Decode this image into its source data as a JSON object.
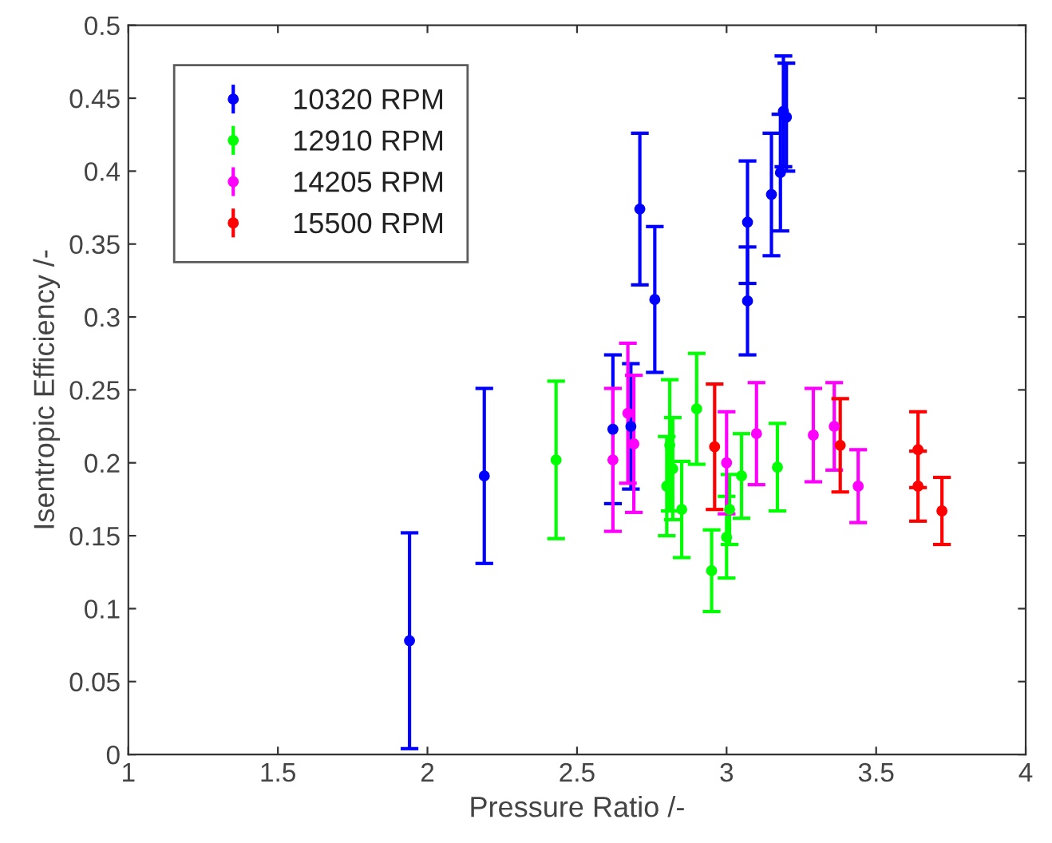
{
  "chart_data": {
    "type": "scatter",
    "xlabel": "Pressure Ratio /-",
    "ylabel": "Isentropic Efficiency /-",
    "xlim": [
      1,
      4
    ],
    "ylim": [
      0,
      0.5
    ],
    "xticks": [
      1,
      1.5,
      2,
      2.5,
      3,
      3.5,
      4
    ],
    "yticks": [
      0,
      0.05,
      0.1,
      0.15,
      0.2,
      0.25,
      0.3,
      0.35,
      0.4,
      0.45,
      0.5
    ],
    "legend": "top left",
    "grid": false,
    "marker": "circle",
    "series": [
      {
        "name": "10320 RPM",
        "color": "#0000ff",
        "x": [
          1.94,
          2.19,
          2.62,
          2.68,
          2.71,
          2.76,
          3.07,
          3.07,
          3.15,
          3.18,
          3.19,
          3.2
        ],
        "values": [
          0.078,
          0.191,
          0.223,
          0.225,
          0.374,
          0.312,
          0.365,
          0.311,
          0.384,
          0.399,
          0.441,
          0.437
        ],
        "errors": [
          0.074,
          0.06,
          0.051,
          0.043,
          0.052,
          0.05,
          0.042,
          0.037,
          0.042,
          0.04,
          0.038,
          0.037
        ]
      },
      {
        "name": "12910 RPM",
        "color": "#00ff00",
        "x": [
          2.43,
          2.8,
          2.81,
          2.82,
          2.85,
          2.9,
          2.95,
          3.0,
          3.01,
          3.05,
          3.17
        ],
        "values": [
          0.202,
          0.184,
          0.212,
          0.196,
          0.168,
          0.237,
          0.126,
          0.149,
          0.168,
          0.191,
          0.197
        ],
        "errors": [
          0.054,
          0.034,
          0.045,
          0.035,
          0.033,
          0.038,
          0.028,
          0.028,
          0.024,
          0.029,
          0.03
        ]
      },
      {
        "name": "14205 RPM",
        "color": "#ff00ff",
        "x": [
          2.62,
          2.67,
          2.69,
          3.0,
          3.1,
          3.29,
          3.36,
          3.44
        ],
        "values": [
          0.202,
          0.234,
          0.213,
          0.2,
          0.22,
          0.219,
          0.225,
          0.184
        ],
        "errors": [
          0.049,
          0.048,
          0.047,
          0.035,
          0.035,
          0.032,
          0.03,
          0.025
        ]
      },
      {
        "name": "15500 RPM",
        "color": "#ff0000",
        "x": [
          2.96,
          3.38,
          3.64,
          3.64,
          3.72
        ],
        "values": [
          0.211,
          0.212,
          0.209,
          0.184,
          0.167
        ],
        "errors": [
          0.043,
          0.032,
          0.026,
          0.024,
          0.023
        ]
      }
    ]
  }
}
